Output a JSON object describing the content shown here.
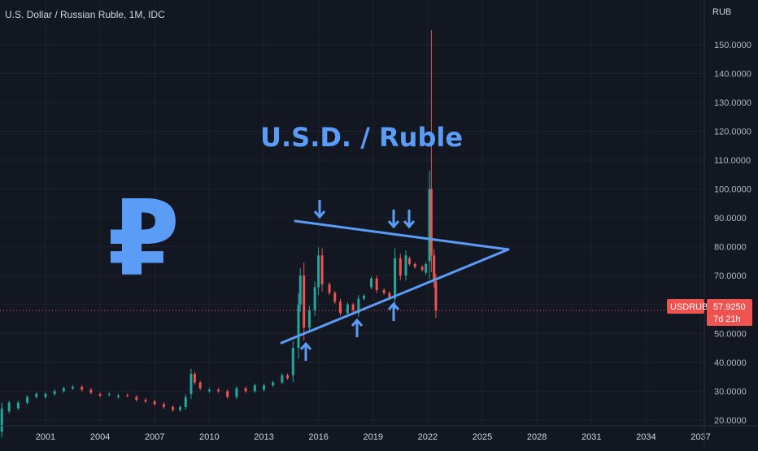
{
  "header": {
    "title": "U.S. Dollar / Russian Ruble, 1M, IDC",
    "unit": "RUB"
  },
  "colors": {
    "background": "#131722",
    "grid": "#1e222d",
    "up": "#26a69a",
    "down": "#ef5350",
    "annotation": "#5b9cf6",
    "price_line": "#ef5350"
  },
  "chart_data": {
    "type": "candlestick",
    "title": "U.S. Dollar / Russian Ruble, 1M, IDC",
    "xlabel": "",
    "ylabel": "RUB",
    "x_ticks": [
      "2001",
      "2004",
      "2007",
      "2010",
      "2013",
      "2016",
      "2019",
      "2022",
      "2025",
      "2028",
      "2031",
      "2034",
      "2037"
    ],
    "y_ticks": [
      "20.0000",
      "30.0000",
      "40.0000",
      "50.0000",
      "60.0000",
      "70.0000",
      "80.0000",
      "90.0000",
      "100.0000",
      "110.0000",
      "120.0000",
      "130.0000",
      "140.0000",
      "150.0000"
    ],
    "xlim": [
      1998.5,
      2037.2
    ],
    "ylim": [
      18,
      157
    ],
    "grid": false,
    "series": [
      {
        "symbol": "USDRUB",
        "points": [
          [
            1998.6,
            16,
            24
          ],
          [
            1999.0,
            23,
            26
          ],
          [
            1999.5,
            24,
            26
          ],
          [
            2000.0,
            26,
            28
          ],
          [
            2000.5,
            28,
            29
          ],
          [
            2001.0,
            28,
            29
          ],
          [
            2001.5,
            29,
            30
          ],
          [
            2002.0,
            30,
            31
          ],
          [
            2002.5,
            31,
            31.5
          ],
          [
            2003.0,
            31.5,
            30.5
          ],
          [
            2003.5,
            30.5,
            29.5
          ],
          [
            2004.0,
            29,
            28.5
          ],
          [
            2004.5,
            28.8,
            29
          ],
          [
            2005.0,
            28,
            28.5
          ],
          [
            2005.5,
            28.6,
            28.5
          ],
          [
            2006.0,
            28,
            27
          ],
          [
            2006.5,
            27,
            26.5
          ],
          [
            2007.0,
            26.5,
            25.5
          ],
          [
            2007.5,
            25.5,
            24.5
          ],
          [
            2008.0,
            24.5,
            23.5
          ],
          [
            2008.4,
            23.5,
            24.5
          ],
          [
            2008.7,
            24.5,
            28
          ],
          [
            2009.0,
            29,
            36
          ],
          [
            2009.2,
            36,
            33
          ],
          [
            2009.5,
            33,
            31
          ],
          [
            2010.0,
            30,
            30.5
          ],
          [
            2010.5,
            30.5,
            30
          ],
          [
            2011.0,
            30,
            28
          ],
          [
            2011.5,
            28,
            31
          ],
          [
            2012.0,
            31,
            30
          ],
          [
            2012.5,
            30,
            32
          ],
          [
            2013.0,
            30.5,
            32
          ],
          [
            2013.5,
            32,
            33
          ],
          [
            2014.0,
            33,
            35.5
          ],
          [
            2014.3,
            35.5,
            34.5
          ],
          [
            2014.6,
            35.5,
            45
          ],
          [
            2014.9,
            45,
            60
          ],
          [
            2015.0,
            60,
            70
          ],
          [
            2015.2,
            70,
            52
          ],
          [
            2015.5,
            52,
            58
          ],
          [
            2015.8,
            58,
            66
          ],
          [
            2016.0,
            66,
            77
          ],
          [
            2016.2,
            77,
            67
          ],
          [
            2016.6,
            67,
            64
          ],
          [
            2016.9,
            64,
            61
          ],
          [
            2017.2,
            61,
            57
          ],
          [
            2017.6,
            57,
            60
          ],
          [
            2017.9,
            60,
            58
          ],
          [
            2018.2,
            57,
            62
          ],
          [
            2018.5,
            62,
            63
          ],
          [
            2018.9,
            66,
            69
          ],
          [
            2019.2,
            69,
            65
          ],
          [
            2019.6,
            65,
            64
          ],
          [
            2019.9,
            64,
            62
          ],
          [
            2020.2,
            62,
            76
          ],
          [
            2020.5,
            76,
            70
          ],
          [
            2020.8,
            70,
            77
          ],
          [
            2021.0,
            76,
            74
          ],
          [
            2021.3,
            74,
            73
          ],
          [
            2021.7,
            73,
            72
          ],
          [
            2021.9,
            71,
            74
          ],
          [
            2022.1,
            75,
            100
          ],
          [
            2022.2,
            100,
            77
          ],
          [
            2022.35,
            77,
            68
          ],
          [
            2022.45,
            68,
            57.9
          ]
        ],
        "last_price": "57.9250",
        "countdown": "7d 21h"
      }
    ],
    "annotations": {
      "headline": "U.S.D. / Ruble",
      "symbol_glyph": "₽"
    }
  }
}
